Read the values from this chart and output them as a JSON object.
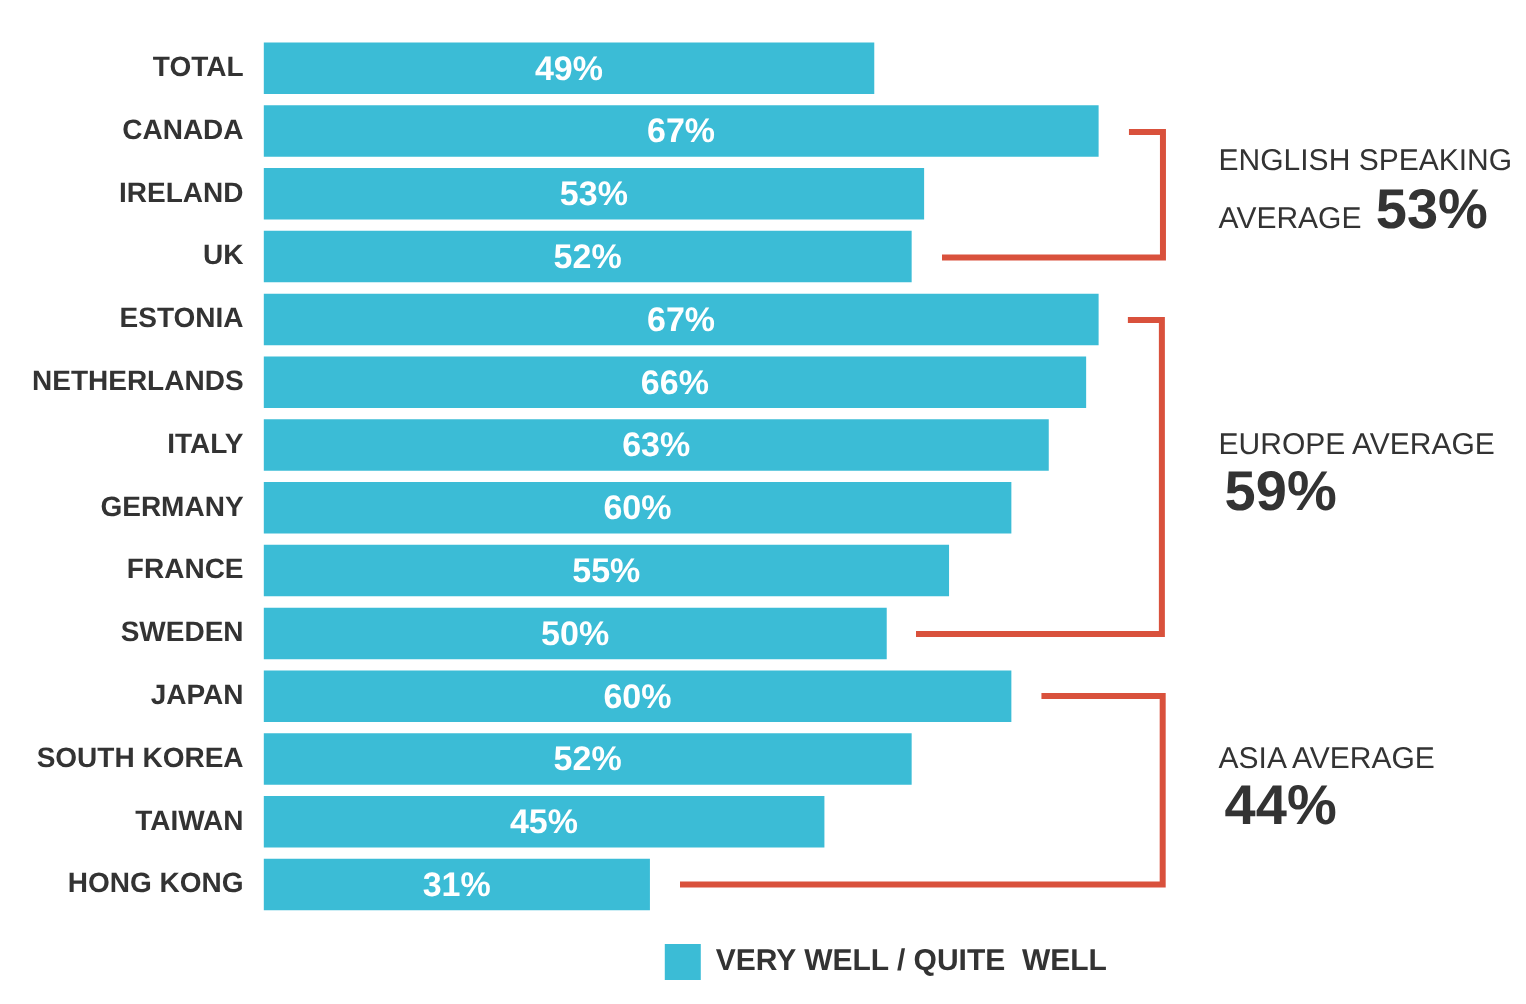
{
  "chart_data": {
    "type": "bar",
    "orientation": "horizontal",
    "categories": [
      "TOTAL",
      "CANADA",
      "IRELAND",
      "UK",
      "ESTONIA",
      "NETHERLANDS",
      "ITALY",
      "GERMANY",
      "FRANCE",
      "SWEDEN",
      "JAPAN",
      "SOUTH KOREA",
      "TAIWAN",
      "HONG KONG"
    ],
    "series": [
      {
        "name": "VERY WELL / QUITE  WELL",
        "color": "#3bbcd6",
        "values": [
          49,
          67,
          53,
          52,
          67,
          66,
          63,
          60,
          55,
          50,
          60,
          52,
          45,
          31
        ],
        "value_labels": [
          "49%",
          "67%",
          "53%",
          "52%",
          "67%",
          "66%",
          "63%",
          "60%",
          "55%",
          "50%",
          "60%",
          "52%",
          "45%",
          "31%"
        ]
      }
    ],
    "annotations": [
      "ENGLISH SPEAKING AVERAGE 53%",
      "EUROPE AVERAGE 59%",
      "ASIA AVERAGE 44%"
    ],
    "legend": "bottom right",
    "tick_labels": "y"
  }
}
